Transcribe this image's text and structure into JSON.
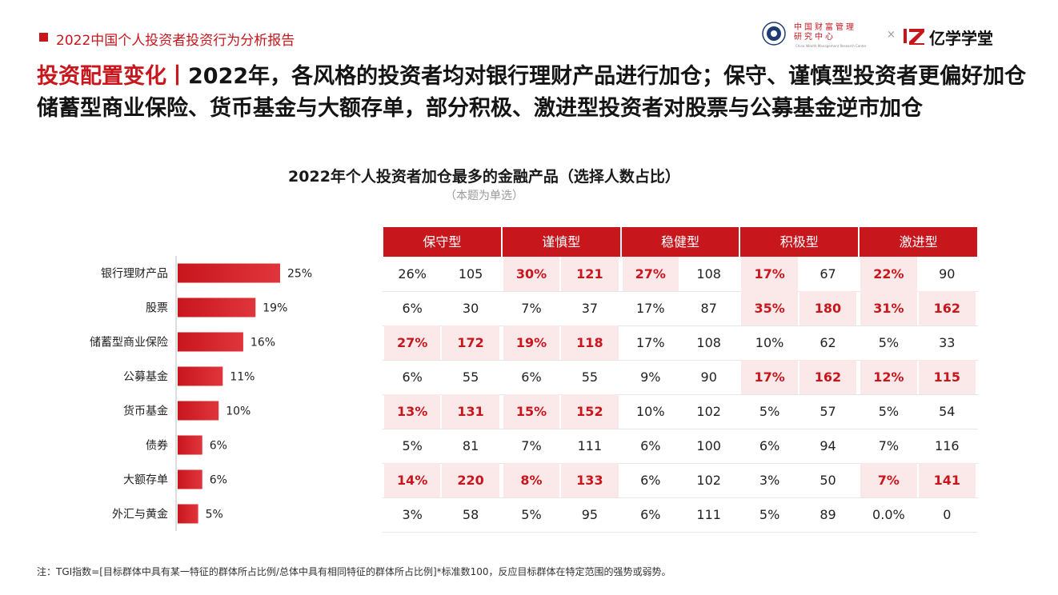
{
  "header": {
    "report_title": "2022中国个人投资者投资行为分析报告",
    "logo_cwm_cn": "中国财富管理\n研究中心",
    "logo_cwm_en": "China Wealth Management Research Center",
    "logo_separator": "×",
    "logo_brand": "亿学学堂"
  },
  "headline": {
    "prefix": "投资配置变化丨",
    "text": "2022年，各风格的投资者均对银行理财产品进行加仓；保守、谨慎型投资者更偏好加仓储蓄型商业保险、货币基金与大额存单，部分积极、激进型投资者对股票与公募基金逆市加仓"
  },
  "chart_data": {
    "type": "bar",
    "orientation": "horizontal",
    "title": "2022年个人投资者加仓最多的金融产品（选择人数占比）",
    "subtitle": "（本题为单选）",
    "categories": [
      "银行理财产品",
      "股票",
      "储蓄型商业保险",
      "公募基金",
      "货币基金",
      "债券",
      "大额存单",
      "外汇与黄金"
    ],
    "values": [
      25,
      19,
      16,
      11,
      10,
      6,
      6,
      5
    ],
    "value_labels": [
      "25%",
      "19%",
      "16%",
      "11%",
      "10%",
      "6%",
      "6%",
      "5%"
    ],
    "unit": "%",
    "xlim": [
      0,
      25
    ],
    "bar_color": "#c8161d"
  },
  "tgi_table": {
    "groups": [
      "保守型",
      "谨慎型",
      "稳健型",
      "积极型",
      "激进型"
    ],
    "rows": [
      [
        {
          "pct": "26%",
          "tgi": "105",
          "hi": false
        },
        {
          "pct": "30%",
          "tgi": "121",
          "hi": true
        },
        {
          "pct": "27%",
          "tgi": "108",
          "hi": "pct"
        },
        {
          "pct": "17%",
          "tgi": "67",
          "hi": "pct"
        },
        {
          "pct": "22%",
          "tgi": "90",
          "hi": "pct"
        }
      ],
      [
        {
          "pct": "6%",
          "tgi": "30",
          "hi": false
        },
        {
          "pct": "7%",
          "tgi": "37",
          "hi": false
        },
        {
          "pct": "17%",
          "tgi": "87",
          "hi": false
        },
        {
          "pct": "35%",
          "tgi": "180",
          "hi": true
        },
        {
          "pct": "31%",
          "tgi": "162",
          "hi": true
        }
      ],
      [
        {
          "pct": "27%",
          "tgi": "172",
          "hi": true
        },
        {
          "pct": "19%",
          "tgi": "118",
          "hi": true
        },
        {
          "pct": "17%",
          "tgi": "108",
          "hi": false
        },
        {
          "pct": "10%",
          "tgi": "62",
          "hi": false
        },
        {
          "pct": "5%",
          "tgi": "33",
          "hi": false
        }
      ],
      [
        {
          "pct": "6%",
          "tgi": "55",
          "hi": false
        },
        {
          "pct": "6%",
          "tgi": "55",
          "hi": false
        },
        {
          "pct": "9%",
          "tgi": "90",
          "hi": false
        },
        {
          "pct": "17%",
          "tgi": "162",
          "hi": true
        },
        {
          "pct": "12%",
          "tgi": "115",
          "hi": true
        }
      ],
      [
        {
          "pct": "13%",
          "tgi": "131",
          "hi": true
        },
        {
          "pct": "15%",
          "tgi": "152",
          "hi": true
        },
        {
          "pct": "10%",
          "tgi": "102",
          "hi": false
        },
        {
          "pct": "5%",
          "tgi": "57",
          "hi": false
        },
        {
          "pct": "5%",
          "tgi": "54",
          "hi": false
        }
      ],
      [
        {
          "pct": "5%",
          "tgi": "81",
          "hi": false
        },
        {
          "pct": "7%",
          "tgi": "111",
          "hi": false
        },
        {
          "pct": "6%",
          "tgi": "100",
          "hi": false
        },
        {
          "pct": "6%",
          "tgi": "94",
          "hi": false
        },
        {
          "pct": "7%",
          "tgi": "116",
          "hi": false
        }
      ],
      [
        {
          "pct": "14%",
          "tgi": "220",
          "hi": true
        },
        {
          "pct": "8%",
          "tgi": "133",
          "hi": true
        },
        {
          "pct": "6%",
          "tgi": "102",
          "hi": false
        },
        {
          "pct": "3%",
          "tgi": "50",
          "hi": false
        },
        {
          "pct": "7%",
          "tgi": "141",
          "hi": true
        }
      ],
      [
        {
          "pct": "3%",
          "tgi": "58",
          "hi": false
        },
        {
          "pct": "5%",
          "tgi": "95",
          "hi": false
        },
        {
          "pct": "6%",
          "tgi": "111",
          "hi": false
        },
        {
          "pct": "5%",
          "tgi": "89",
          "hi": false
        },
        {
          "pct": "0.0%",
          "tgi": "0",
          "hi": false
        }
      ]
    ]
  },
  "footnote": "注：TGI指数=[目标群体中具有某一特征的群体所占比例/总体中具有相同特征的群体所占比例]*标准数100，反应目标群体在特定范围的强势或弱势。",
  "colors": {
    "accent": "#c8161d",
    "highlight_bg": "#fbe9ea"
  }
}
